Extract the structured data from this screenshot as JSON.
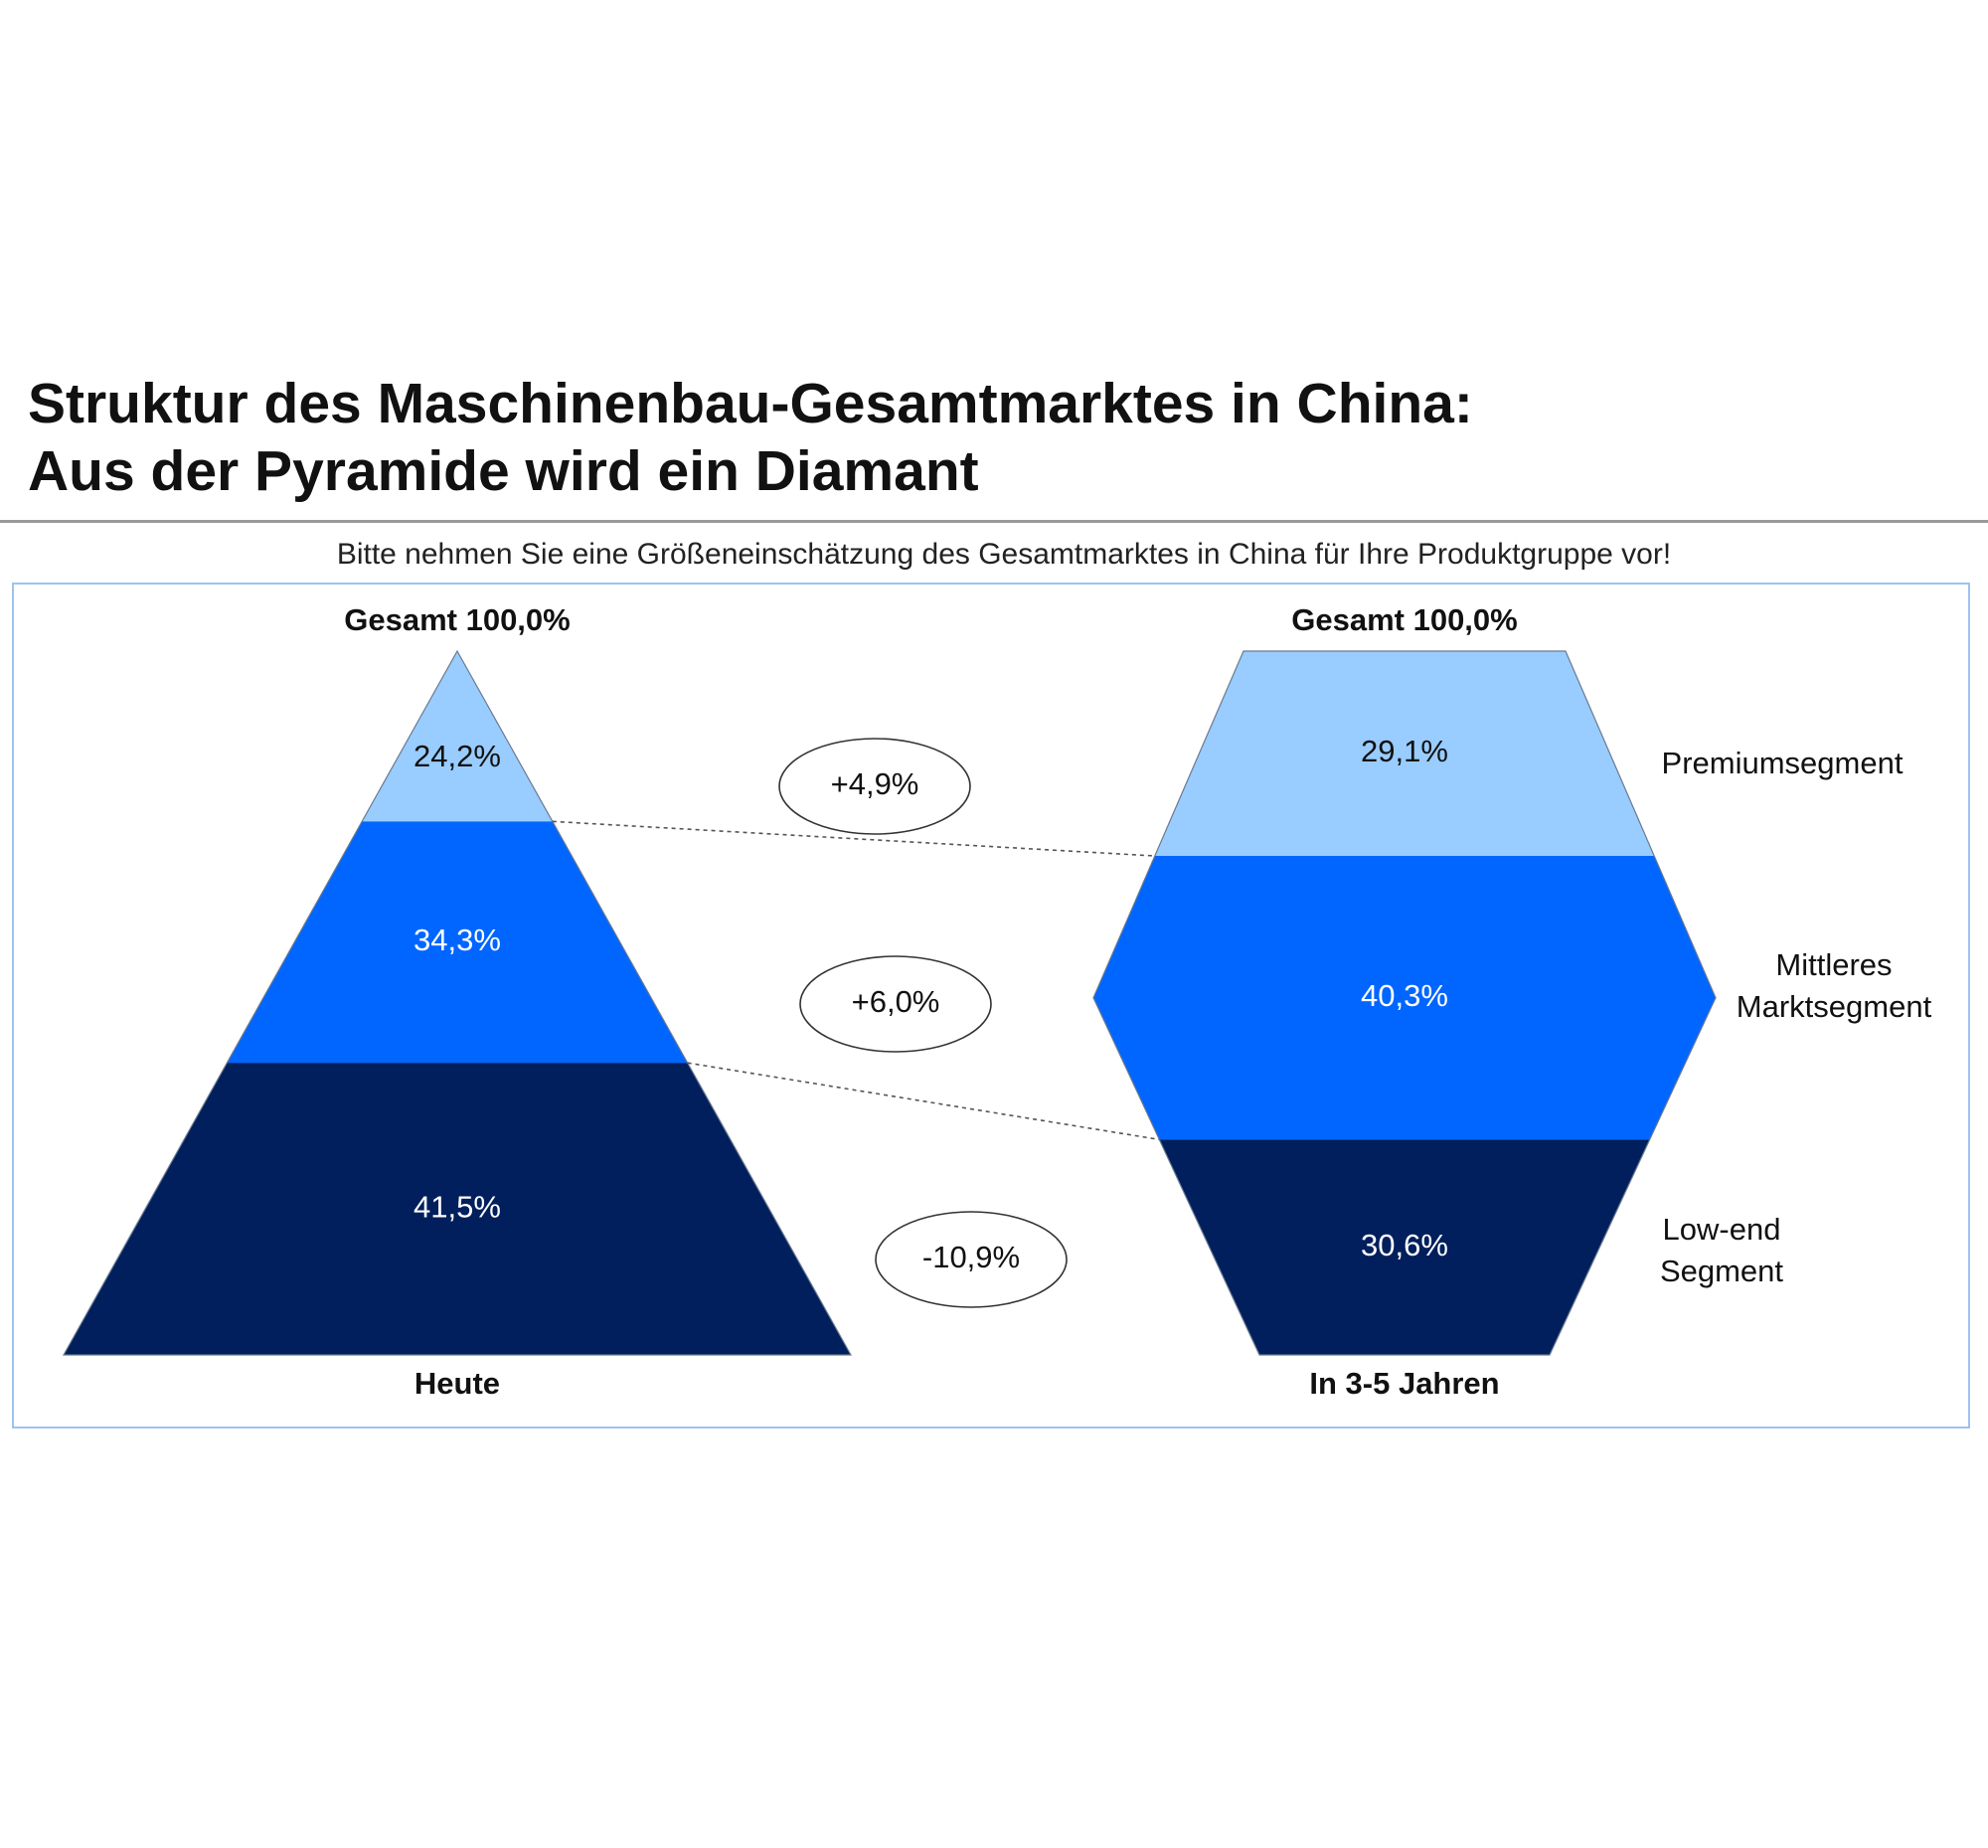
{
  "header": {
    "title_line1": "Struktur des Maschinenbau-Gesamtmarktes in China:",
    "title_line2": "Aus der Pyramide wird ein Diamant",
    "instruction": "Bitte nehmen Sie eine Größeneinschätzung des Gesamtmarktes in China für Ihre Produktgruppe vor!"
  },
  "colors": {
    "premium": "#99ccff",
    "middle": "#0066ff",
    "lowend": "#001f5c",
    "frame": "#9ec3ef"
  },
  "chart_data": {
    "type": "stacked-shape",
    "segments": [
      "Premiumsegment",
      "Mittleres Marktsegment",
      "Low-end Segment"
    ],
    "segment_labels": [
      [
        "Premiumsegment"
      ],
      [
        "Mittleres",
        "Marktsegment"
      ],
      [
        "Low-end",
        "Segment"
      ]
    ],
    "today": {
      "label": "Heute",
      "total": "Gesamt 100,0%",
      "values": [
        24.2,
        34.3,
        41.5
      ],
      "value_labels": [
        "24,2%",
        "34,3%",
        "41,5%"
      ]
    },
    "future": {
      "label": "In 3-5 Jahren",
      "total": "Gesamt 100,0%",
      "values": [
        29.1,
        40.3,
        30.6
      ],
      "value_labels": [
        "29,1%",
        "40,3%",
        "30,6%"
      ]
    },
    "changes": [
      4.9,
      6.0,
      -10.9
    ],
    "change_labels": [
      "+4,9%",
      "+6,0%",
      "-10,9%"
    ]
  }
}
